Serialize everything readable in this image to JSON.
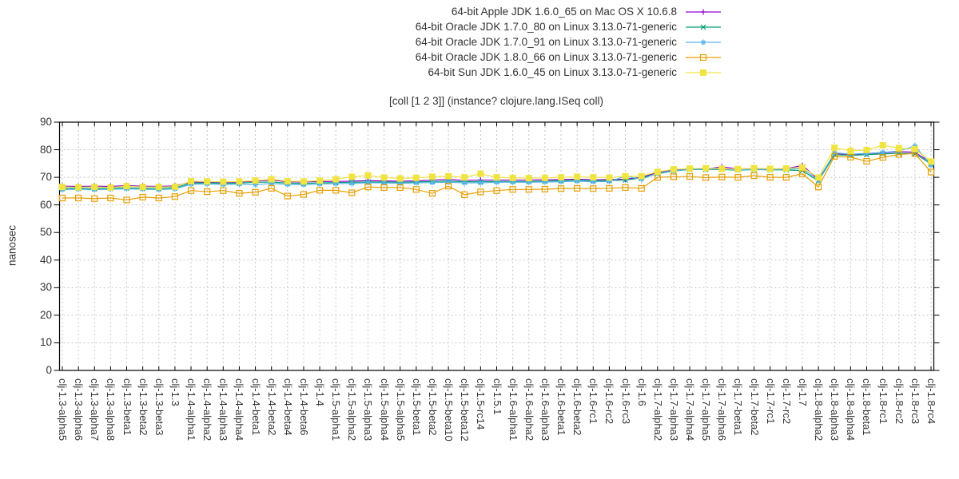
{
  "title": "[coll [1 2 3]] (instance? clojure.lang.ISeq coll)",
  "chart_data": {
    "type": "line",
    "title": "[coll [1 2 3]] (instance? clojure.lang.ISeq coll)",
    "xlabel": "",
    "ylabel": "nanosec",
    "ylim": [
      0,
      90
    ],
    "yticks": [
      0,
      10,
      20,
      30,
      40,
      50,
      60,
      70,
      80,
      90
    ],
    "grid": true,
    "legend_position": "top-center",
    "categories": [
      "clj-1.3-alpha5",
      "clj-1.3-alpha6",
      "clj-1.3-alpha7",
      "clj-1.3-alpha8",
      "clj-1.3-beta1",
      "clj-1.3-beta2",
      "clj-1.3-beta3",
      "clj-1.3",
      "clj-1.4-alpha1",
      "clj-1.4-alpha2",
      "clj-1.4-alpha3",
      "clj-1.4-alpha4",
      "clj-1.4-beta1",
      "clj-1.4-beta2",
      "clj-1.4-beta4",
      "clj-1.4-beta6",
      "clj-1.4",
      "clj-1.5-alpha1",
      "clj-1.5-alpha2",
      "clj-1.5-alpha3",
      "clj-1.5-alpha4",
      "clj-1.5-alpha5",
      "clj-1.5-beta1",
      "clj-1.5-beta2",
      "clj-1.5-beta10",
      "clj-1.5-beta12",
      "clj-1.5-rc14",
      "clj-1.5.1",
      "clj-1.6-alpha1",
      "clj-1.6-alpha2",
      "clj-1.6-alpha3",
      "clj-1.6-beta1",
      "clj-1.6-beta2",
      "clj-1.6-rc1",
      "clj-1.6-rc2",
      "clj-1.6-rc3",
      "clj-1.6",
      "clj-1.7-alpha2",
      "clj-1.7-alpha3",
      "clj-1.7-alpha4",
      "clj-1.7-alpha5",
      "clj-1.7-alpha6",
      "clj-1.7-beta1",
      "clj-1.7-beta2",
      "clj-1.7-rc1",
      "clj-1.7-rc2",
      "clj-1.7",
      "clj-1.8-alpha2",
      "clj-1.8-alpha3",
      "clj-1.8-alpha4",
      "clj-1.8-beta1",
      "clj-1.8-rc1",
      "clj-1.8-rc2",
      "clj-1.8-rc3",
      "clj-1.8-rc4"
    ],
    "series": [
      {
        "name": "64-bit Apple JDK 1.6.0_65 on Mac OS X 10.6.8",
        "color": "#9400d3",
        "marker": "plus",
        "values": [
          66.8,
          66.7,
          66.8,
          66.7,
          67.0,
          66.8,
          66.7,
          66.9,
          68.3,
          68.3,
          68.2,
          68.3,
          68.6,
          69.0,
          68.4,
          68.3,
          68.5,
          68.5,
          68.6,
          68.8,
          68.7,
          68.6,
          68.7,
          69.0,
          69.2,
          68.9,
          69.0,
          69.0,
          69.0,
          69.0,
          69.1,
          69.2,
          69.3,
          69.1,
          69.2,
          69.3,
          70.0,
          71.8,
          72.6,
          73.0,
          73.0,
          73.8,
          73.0,
          73.2,
          73.0,
          73.1,
          74.3,
          69.3,
          78.6,
          78.3,
          78.6,
          78.9,
          79.3,
          79.1,
          75.3
        ]
      },
      {
        "name": "64-bit Oracle JDK 1.7.0_80 on Linux 3.13.0-71-generic",
        "color": "#009e73",
        "marker": "x",
        "values": [
          66.0,
          66.0,
          65.9,
          66.0,
          66.2,
          66.0,
          66.0,
          66.2,
          67.9,
          68.0,
          67.8,
          67.9,
          68.2,
          68.3,
          67.9,
          67.8,
          68.0,
          68.1,
          68.2,
          68.3,
          68.3,
          68.2,
          68.3,
          68.5,
          68.6,
          68.4,
          68.4,
          68.5,
          68.5,
          68.5,
          68.6,
          68.8,
          69.0,
          68.8,
          68.8,
          69.0,
          69.8,
          71.3,
          72.3,
          72.8,
          72.8,
          72.8,
          72.6,
          72.8,
          72.7,
          72.7,
          72.4,
          68.7,
          78.2,
          78.0,
          78.2,
          78.5,
          78.7,
          78.6,
          74.8
        ]
      },
      {
        "name": "64-bit Oracle JDK 1.7.0_91 on Linux 3.13.0-71-generic",
        "color": "#56b4e9",
        "marker": "asterisk",
        "values": [
          65.5,
          65.7,
          65.5,
          65.7,
          65.8,
          65.7,
          65.5,
          65.8,
          67.5,
          67.6,
          67.4,
          67.5,
          67.3,
          67.8,
          67.4,
          67.3,
          67.6,
          67.7,
          67.8,
          68.0,
          68.0,
          67.8,
          68.0,
          68.1,
          68.2,
          68.0,
          68.0,
          68.2,
          68.2,
          68.2,
          68.3,
          68.4,
          68.6,
          68.4,
          68.5,
          70.4,
          69.3,
          71.5,
          72.4,
          72.9,
          72.9,
          73.0,
          72.7,
          72.9,
          72.8,
          72.9,
          73.2,
          69.0,
          78.9,
          78.4,
          78.7,
          79.0,
          79.5,
          81.4,
          74.4
        ]
      },
      {
        "name": "64-bit Oracle JDK 1.8.0_66 on Linux 3.13.0-71-generic",
        "color": "#e69f00",
        "marker": "open-square",
        "values": [
          62.5,
          62.5,
          62.3,
          62.5,
          61.8,
          62.8,
          62.5,
          63.0,
          65.2,
          64.8,
          65.2,
          64.2,
          64.6,
          66.0,
          63.2,
          63.8,
          65.3,
          65.3,
          64.4,
          66.5,
          66.3,
          66.3,
          65.6,
          64.2,
          66.8,
          63.7,
          64.7,
          65.2,
          65.6,
          65.6,
          65.7,
          65.9,
          66.0,
          65.9,
          66.0,
          66.3,
          66.0,
          70.0,
          70.2,
          70.3,
          69.9,
          70.1,
          70.0,
          70.6,
          70.0,
          70.0,
          71.3,
          66.5,
          77.6,
          77.3,
          75.8,
          77.2,
          78.3,
          78.6,
          71.9
        ]
      },
      {
        "name": "64-bit Sun JDK 1.6.0_45 on Linux 3.13.0-71-generic",
        "color": "#f0e442",
        "marker": "filled-square",
        "values": [
          66.5,
          66.4,
          66.5,
          66.3,
          66.8,
          66.5,
          66.5,
          66.6,
          68.6,
          68.5,
          68.4,
          68.5,
          68.8,
          69.3,
          68.6,
          68.5,
          68.8,
          69.3,
          70.2,
          70.7,
          69.9,
          69.6,
          69.8,
          70.2,
          70.4,
          70.0,
          71.3,
          70.0,
          69.8,
          69.7,
          69.8,
          70.0,
          70.2,
          70.0,
          69.9,
          70.4,
          70.4,
          72.0,
          72.9,
          73.2,
          73.3,
          73.1,
          73.0,
          73.3,
          73.1,
          73.2,
          73.6,
          69.9,
          80.7,
          79.6,
          79.9,
          81.6,
          80.6,
          80.2,
          75.7
        ]
      }
    ],
    "colors": {
      "grid": "#c6c6c6",
      "frame": "#000000",
      "text": "#333333"
    }
  }
}
